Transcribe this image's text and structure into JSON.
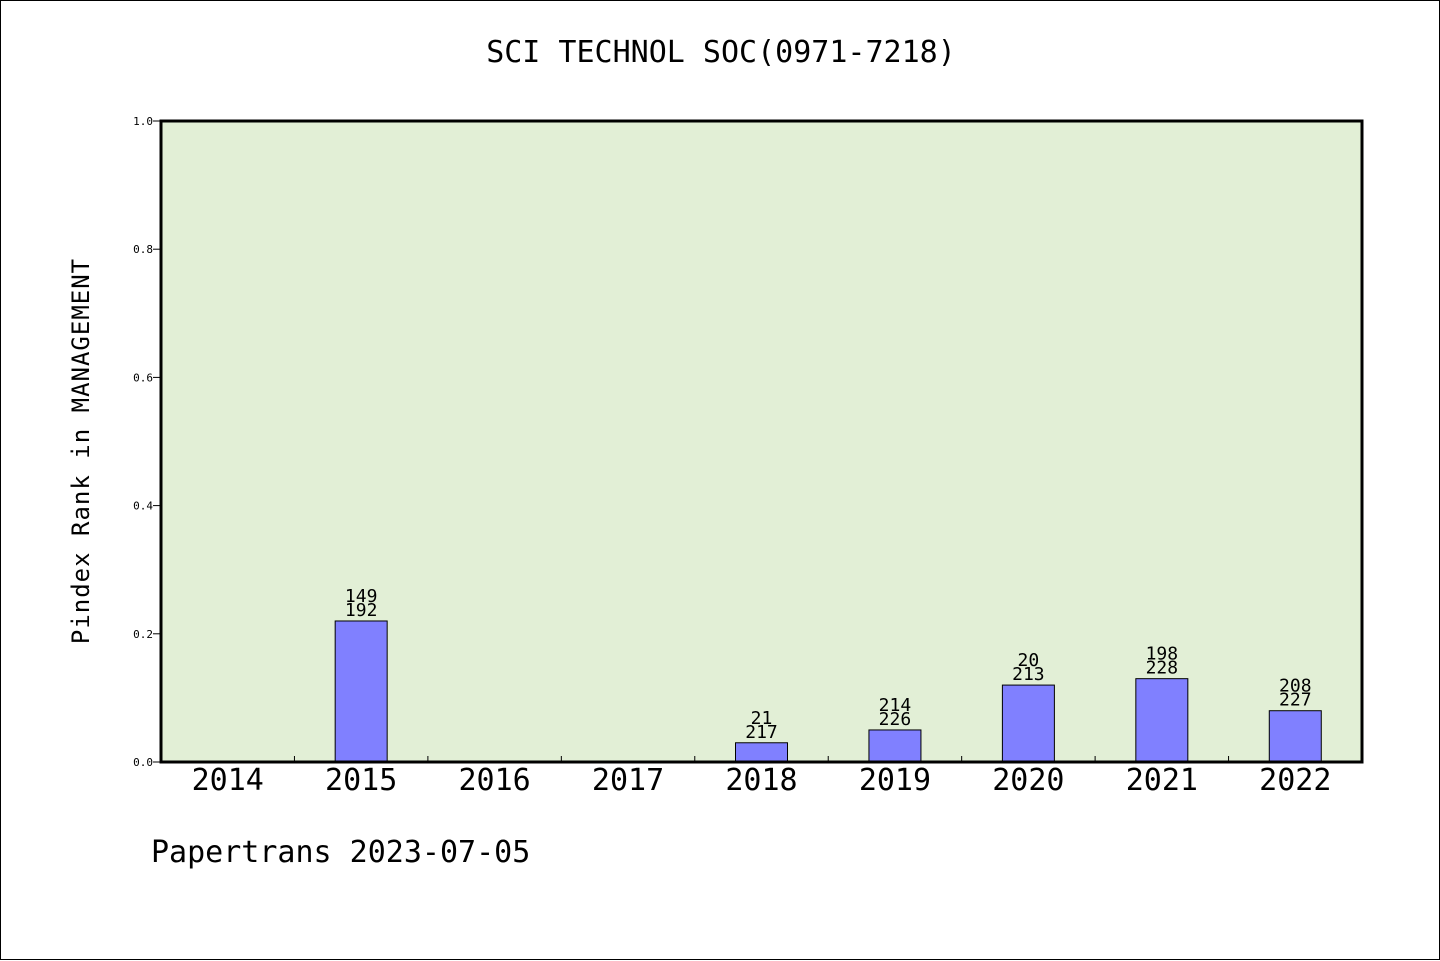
{
  "chart_data": {
    "type": "bar",
    "title": "SCI TECHNOL SOC(0971-7218)",
    "xlabel": "",
    "ylabel": "Pindex Rank in MANAGEMENT",
    "categories": [
      "2014",
      "2015",
      "2016",
      "2017",
      "2018",
      "2019",
      "2020",
      "2021",
      "2022"
    ],
    "values": [
      0,
      0.22,
      0,
      0,
      0.03,
      0.05,
      0.12,
      0.13,
      0.08
    ],
    "label_top": [
      "",
      "149",
      "",
      "",
      "21",
      "214",
      "20",
      "198",
      "208"
    ],
    "label_bottom": [
      "",
      "192",
      "",
      "",
      "217",
      "226",
      "213",
      "228",
      "227"
    ],
    "ylim": [
      0,
      1.0
    ],
    "yticks": [
      "0.0",
      "0.2",
      "0.4",
      "0.6",
      "0.8",
      "1.0"
    ],
    "grid": false,
    "legend": "none"
  },
  "footer": "Papertrans 2023-07-05",
  "colors": {
    "plot_background": "#e2efd6",
    "bar_fill": "#8080ff",
    "bar_stroke": "#000000",
    "axis": "#000000"
  }
}
